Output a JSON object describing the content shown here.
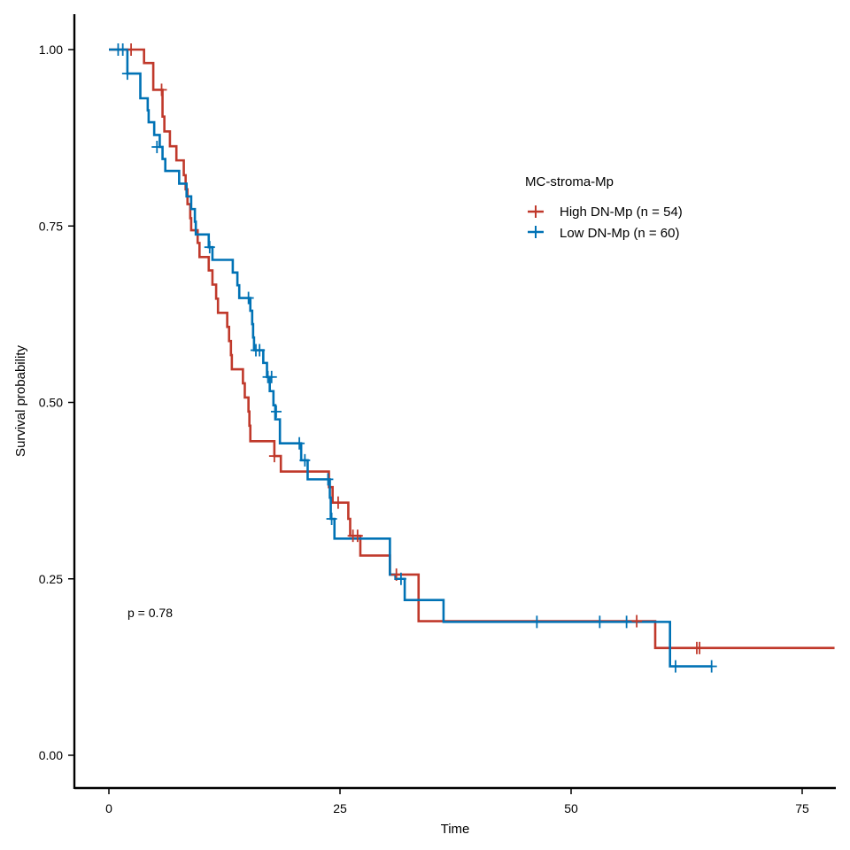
{
  "chart_data": {
    "type": "line",
    "subtype": "kaplan-meier",
    "title": "",
    "xlabel": "Time",
    "ylabel": "Survival probability",
    "xlim": [
      -4,
      78.5
    ],
    "ylim": [
      -0.05,
      1.05
    ],
    "xticks": [
      0,
      25,
      50,
      75
    ],
    "yticks": [
      0,
      0.25,
      0.5,
      0.75,
      1.0
    ],
    "ytick_labels": [
      "0.00",
      "0.25",
      "0.50",
      "0.75",
      "1.00"
    ],
    "grid": false,
    "legend": {
      "title": "MC-stroma-Mp",
      "position": "right-top"
    },
    "annotation": "p = 0.78",
    "series": [
      {
        "name": "High DN-Mp (n = 54)",
        "color": "#C0392B",
        "steps": [
          [
            0,
            1.0
          ],
          [
            3.8,
            0.981
          ],
          [
            4.8,
            0.943
          ],
          [
            5.8,
            0.905
          ],
          [
            6.0,
            0.884
          ],
          [
            6.6,
            0.863
          ],
          [
            7.3,
            0.843
          ],
          [
            8.1,
            0.822
          ],
          [
            8.3,
            0.802
          ],
          [
            8.5,
            0.781
          ],
          [
            8.8,
            0.761
          ],
          [
            8.9,
            0.744
          ],
          [
            9.6,
            0.726
          ],
          [
            9.8,
            0.706
          ],
          [
            10.8,
            0.687
          ],
          [
            11.2,
            0.667
          ],
          [
            11.6,
            0.647
          ],
          [
            11.8,
            0.627
          ],
          [
            12.8,
            0.607
          ],
          [
            13.0,
            0.587
          ],
          [
            13.2,
            0.567
          ],
          [
            13.3,
            0.547
          ],
          [
            14.5,
            0.527
          ],
          [
            14.7,
            0.507
          ],
          [
            15.1,
            0.487
          ],
          [
            15.2,
            0.467
          ],
          [
            15.3,
            0.445
          ],
          [
            17.9,
            0.424
          ],
          [
            18.6,
            0.402
          ],
          [
            23.8,
            0.38
          ],
          [
            24.2,
            0.358
          ],
          [
            25.9,
            0.335
          ],
          [
            26.1,
            0.311
          ],
          [
            27.2,
            0.283
          ],
          [
            30.4,
            0.256
          ],
          [
            33.5,
            0.19
          ],
          [
            59.1,
            0.152
          ],
          [
            78.5,
            0.152
          ]
        ],
        "censored": [
          [
            2.4,
            1.0
          ],
          [
            5.7,
            0.943
          ],
          [
            17.9,
            0.424
          ],
          [
            24.8,
            0.358
          ],
          [
            26.4,
            0.311
          ],
          [
            26.9,
            0.311
          ],
          [
            31.1,
            0.256
          ],
          [
            57.1,
            0.19
          ],
          [
            63.6,
            0.152
          ],
          [
            63.9,
            0.152
          ]
        ]
      },
      {
        "name": "Low DN-Mp (n = 60)",
        "color": "#0072B5",
        "steps": [
          [
            0,
            1.0
          ],
          [
            2.0,
            0.966
          ],
          [
            3.4,
            0.931
          ],
          [
            4.2,
            0.914
          ],
          [
            4.3,
            0.897
          ],
          [
            4.9,
            0.879
          ],
          [
            5.5,
            0.862
          ],
          [
            5.8,
            0.845
          ],
          [
            6.1,
            0.828
          ],
          [
            7.6,
            0.81
          ],
          [
            8.4,
            0.792
          ],
          [
            8.9,
            0.774
          ],
          [
            9.3,
            0.756
          ],
          [
            9.4,
            0.738
          ],
          [
            10.8,
            0.72
          ],
          [
            11.2,
            0.702
          ],
          [
            13.4,
            0.684
          ],
          [
            13.9,
            0.666
          ],
          [
            14.1,
            0.648
          ],
          [
            15.3,
            0.63
          ],
          [
            15.5,
            0.611
          ],
          [
            15.6,
            0.592
          ],
          [
            15.7,
            0.574
          ],
          [
            16.7,
            0.556
          ],
          [
            17.1,
            0.536
          ],
          [
            17.4,
            0.516
          ],
          [
            17.8,
            0.496
          ],
          [
            18.0,
            0.476
          ],
          [
            18.5,
            0.442
          ],
          [
            20.8,
            0.418
          ],
          [
            21.5,
            0.391
          ],
          [
            23.9,
            0.365
          ],
          [
            24.0,
            0.335
          ],
          [
            24.4,
            0.307
          ],
          [
            30.4,
            0.256
          ],
          [
            31.0,
            0.25
          ],
          [
            32.0,
            0.22
          ],
          [
            36.2,
            0.189
          ],
          [
            60.7,
            0.126
          ],
          [
            65.2,
            0.126
          ]
        ],
        "censored": [
          [
            1.0,
            1.0
          ],
          [
            1.5,
            1.0
          ],
          [
            2.0,
            0.966
          ],
          [
            5.2,
            0.862
          ],
          [
            10.9,
            0.72
          ],
          [
            15.1,
            0.648
          ],
          [
            15.9,
            0.574
          ],
          [
            16.3,
            0.574
          ],
          [
            17.2,
            0.536
          ],
          [
            17.6,
            0.536
          ],
          [
            18.1,
            0.487
          ],
          [
            20.6,
            0.442
          ],
          [
            21.2,
            0.418
          ],
          [
            23.7,
            0.391
          ],
          [
            24.1,
            0.335
          ],
          [
            31.6,
            0.25
          ],
          [
            46.3,
            0.189
          ],
          [
            53.1,
            0.189
          ],
          [
            56.0,
            0.189
          ],
          [
            61.3,
            0.126
          ],
          [
            65.2,
            0.126
          ]
        ]
      }
    ]
  }
}
